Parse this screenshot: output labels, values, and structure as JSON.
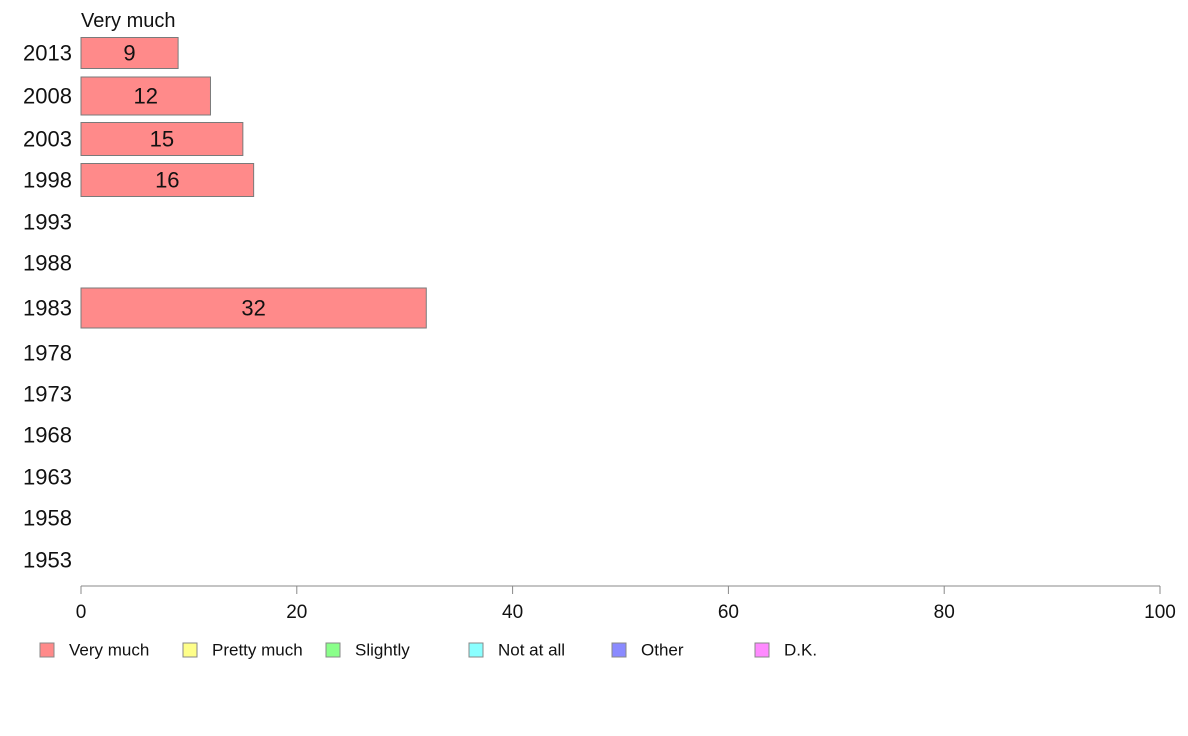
{
  "chart_data": {
    "type": "bar",
    "orientation": "horizontal",
    "title": "Very much",
    "categories": [
      "2013",
      "2008",
      "2003",
      "1998",
      "1993",
      "1988",
      "1983",
      "1978",
      "1973",
      "1968",
      "1963",
      "1958",
      "1953"
    ],
    "series": [
      {
        "name": "Very much",
        "color": "#ff8a8a",
        "values": [
          9,
          12,
          15,
          16,
          null,
          null,
          32,
          null,
          null,
          null,
          null,
          null,
          null
        ]
      }
    ],
    "xlim": [
      0,
      100
    ],
    "xticks": [
      0,
      20,
      40,
      60,
      80,
      100
    ],
    "grid": false,
    "legend_position": "bottom",
    "legend": [
      {
        "label": "Very much",
        "color": "#ff8a8a"
      },
      {
        "label": "Pretty much",
        "color": "#ffff8a"
      },
      {
        "label": "Slightly",
        "color": "#8aff8a"
      },
      {
        "label": "Not at all",
        "color": "#8affff"
      },
      {
        "label": "Other",
        "color": "#8a8aff"
      },
      {
        "label": "D.K.",
        "color": "#ff8aff"
      }
    ]
  }
}
